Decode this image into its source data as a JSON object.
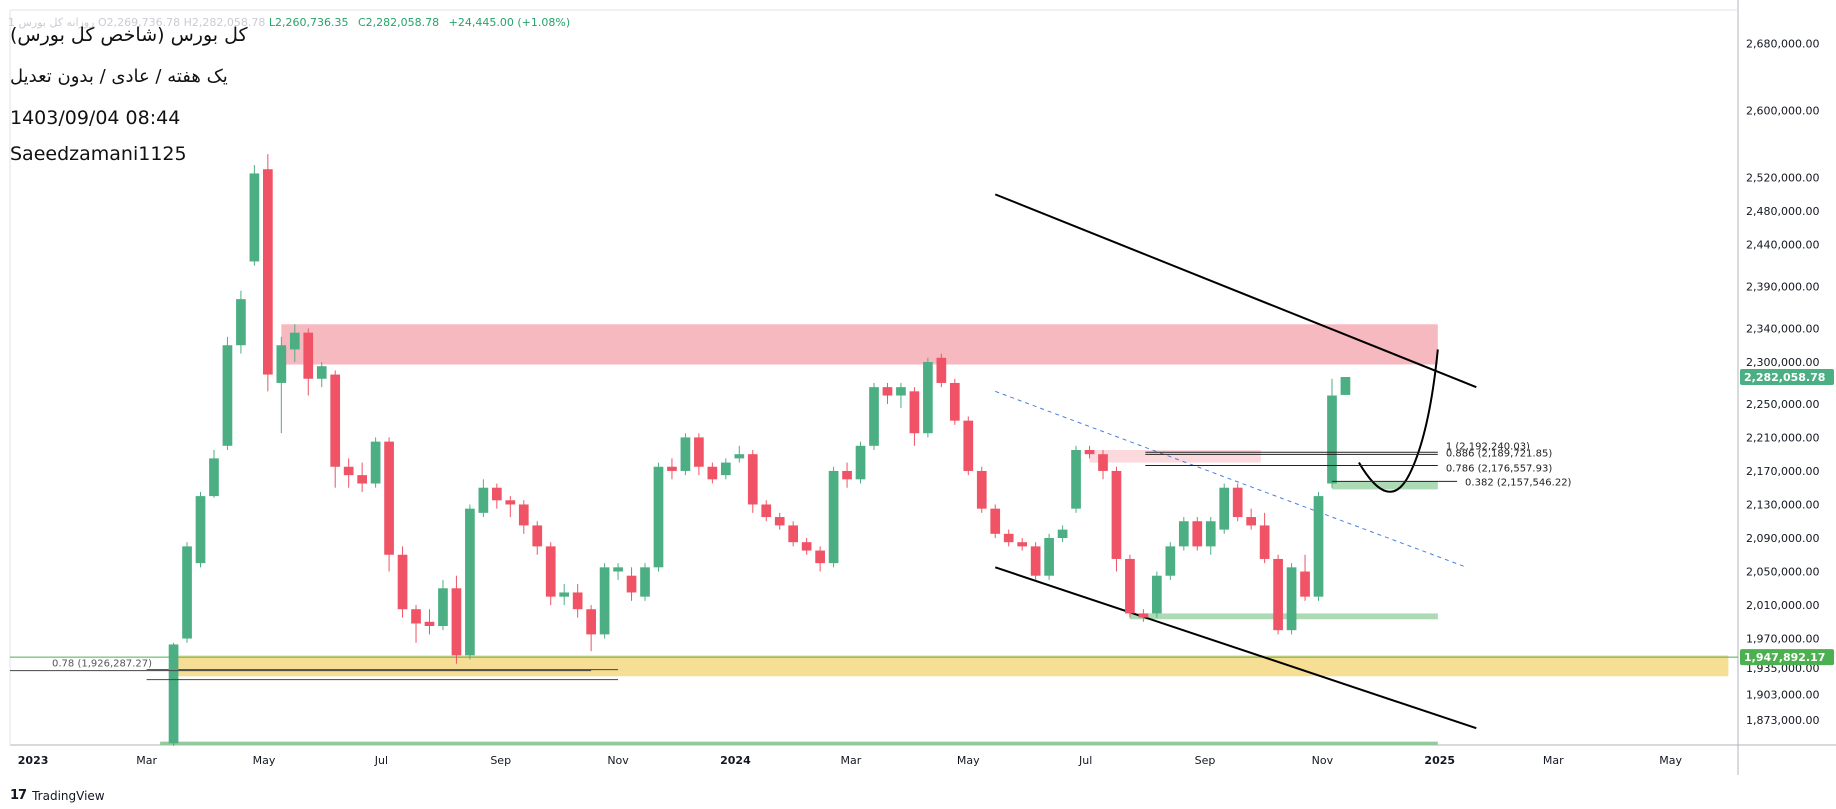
{
  "header": {
    "ohlc_faint": "1 روزانه کل بورس  O2,269,736.78  H2,282,058.78",
    "low": "L2,260,736.35",
    "close": "C2,282,058.78",
    "change": "+24,445.00 (+1.08%)"
  },
  "info": {
    "symbol_title": "کل بورس (شاخص کل بورس)",
    "timeframe": "یک هفته / عادی / بدون تعدیل",
    "datetime": "1403/09/04 08:44",
    "author": "Saeedzamani1125"
  },
  "branding": {
    "logo": "17",
    "name": "TradingView"
  },
  "colors": {
    "up": "#4caf84",
    "down": "#ef5365",
    "resistance_zone": "#f7b5bd",
    "support_zone": "#f7dc8f",
    "green_zone": "#a7d8b1",
    "price_badge": "#4caf84"
  },
  "chart_data": {
    "type": "candlestick",
    "interval": "weekly",
    "ylim": [
      1843000,
      2720000
    ],
    "xlim": [
      "2022-12-20",
      "2025-06-05"
    ],
    "y_ticks": [
      {
        "value": 1873000,
        "label": "1,873,000.00"
      },
      {
        "value": 1903000,
        "label": "1,903,000.00"
      },
      {
        "value": 1935000,
        "label": "1,935,000.00"
      },
      {
        "value": 1970000,
        "label": "1,970,000.00"
      },
      {
        "value": 2010000,
        "label": "2,010,000.00"
      },
      {
        "value": 2050000,
        "label": "2,050,000.00"
      },
      {
        "value": 2090000,
        "label": "2,090,000.00"
      },
      {
        "value": 2130000,
        "label": "2,130,000.00"
      },
      {
        "value": 2170000,
        "label": "2,170,000.00"
      },
      {
        "value": 2210000,
        "label": "2,210,000.00"
      },
      {
        "value": 2250000,
        "label": "2,250,000.00"
      },
      {
        "value": 2300000,
        "label": "2,300,000.00"
      },
      {
        "value": 2340000,
        "label": "2,340,000.00"
      },
      {
        "value": 2390000,
        "label": "2,390,000.00"
      },
      {
        "value": 2440000,
        "label": "2,440,000.00"
      },
      {
        "value": 2480000,
        "label": "2,480,000.00"
      },
      {
        "value": 2520000,
        "label": "2,520,000.00"
      },
      {
        "value": 2600000,
        "label": "2,600,000.00"
      },
      {
        "value": 2680000,
        "label": "2,680,000.00"
      }
    ],
    "x_ticks": [
      {
        "date": "2023-01-01",
        "label": "2023"
      },
      {
        "date": "2023-03-01",
        "label": "Mar"
      },
      {
        "date": "2023-05-01",
        "label": "May"
      },
      {
        "date": "2023-07-01",
        "label": "Jul"
      },
      {
        "date": "2023-09-01",
        "label": "Sep"
      },
      {
        "date": "2023-11-01",
        "label": "Nov"
      },
      {
        "date": "2024-01-01",
        "label": "2024"
      },
      {
        "date": "2024-03-01",
        "label": "Mar"
      },
      {
        "date": "2024-05-01",
        "label": "May"
      },
      {
        "date": "2024-07-01",
        "label": "Jul"
      },
      {
        "date": "2024-09-01",
        "label": "Sep"
      },
      {
        "date": "2024-11-01",
        "label": "Nov"
      },
      {
        "date": "2025-01-01",
        "label": "2025"
      },
      {
        "date": "2025-03-01",
        "label": "Mar"
      },
      {
        "date": "2025-05-01",
        "label": "May"
      }
    ],
    "last_price": {
      "value": 2282058.78,
      "label": "2,282,058.78"
    },
    "horizontal_line": {
      "value": 1947892.17,
      "label": "1,947,892.17"
    },
    "candles": [
      {
        "t": "2023-03-15",
        "o": 1845000,
        "h": 1965000,
        "l": 1842000,
        "c": 1963000
      },
      {
        "t": "2023-03-22",
        "o": 1970000,
        "h": 2085000,
        "l": 1965000,
        "c": 2080000
      },
      {
        "t": "2023-03-29",
        "o": 2060000,
        "h": 2145000,
        "l": 2055000,
        "c": 2140000
      },
      {
        "t": "2023-04-05",
        "o": 2140000,
        "h": 2195000,
        "l": 2138000,
        "c": 2185000
      },
      {
        "t": "2023-04-12",
        "o": 2200000,
        "h": 2330000,
        "l": 2195000,
        "c": 2320000
      },
      {
        "t": "2023-04-19",
        "o": 2320000,
        "h": 2385000,
        "l": 2310000,
        "c": 2375000
      },
      {
        "t": "2023-04-26",
        "o": 2420000,
        "h": 2535000,
        "l": 2415000,
        "c": 2525000
      },
      {
        "t": "2023-05-03",
        "o": 2530000,
        "h": 2548000,
        "l": 2265000,
        "c": 2285000
      },
      {
        "t": "2023-05-10",
        "o": 2275000,
        "h": 2330000,
        "l": 2215000,
        "c": 2320000
      },
      {
        "t": "2023-05-17",
        "o": 2315000,
        "h": 2345000,
        "l": 2300000,
        "c": 2335000
      },
      {
        "t": "2023-05-24",
        "o": 2335000,
        "h": 2340000,
        "l": 2260000,
        "c": 2280000
      },
      {
        "t": "2023-05-31",
        "o": 2280000,
        "h": 2300000,
        "l": 2270000,
        "c": 2295000
      },
      {
        "t": "2023-06-07",
        "o": 2285000,
        "h": 2290000,
        "l": 2150000,
        "c": 2175000
      },
      {
        "t": "2023-06-14",
        "o": 2175000,
        "h": 2185000,
        "l": 2150000,
        "c": 2165000
      },
      {
        "t": "2023-06-21",
        "o": 2165000,
        "h": 2180000,
        "l": 2145000,
        "c": 2155000
      },
      {
        "t": "2023-06-28",
        "o": 2155000,
        "h": 2210000,
        "l": 2150000,
        "c": 2205000
      },
      {
        "t": "2023-07-05",
        "o": 2205000,
        "h": 2210000,
        "l": 2050000,
        "c": 2070000
      },
      {
        "t": "2023-07-12",
        "o": 2070000,
        "h": 2080000,
        "l": 1995000,
        "c": 2005000
      },
      {
        "t": "2023-07-19",
        "o": 2005000,
        "h": 2010000,
        "l": 1965000,
        "c": 1988000
      },
      {
        "t": "2023-07-26",
        "o": 1990000,
        "h": 2005000,
        "l": 1975000,
        "c": 1985000
      },
      {
        "t": "2023-08-02",
        "o": 1985000,
        "h": 2040000,
        "l": 1980000,
        "c": 2030000
      },
      {
        "t": "2023-08-09",
        "o": 2030000,
        "h": 2045000,
        "l": 1940000,
        "c": 1950000
      },
      {
        "t": "2023-08-16",
        "o": 1950000,
        "h": 2130000,
        "l": 1945000,
        "c": 2125000
      },
      {
        "t": "2023-08-23",
        "o": 2120000,
        "h": 2160000,
        "l": 2115000,
        "c": 2150000
      },
      {
        "t": "2023-08-30",
        "o": 2150000,
        "h": 2155000,
        "l": 2125000,
        "c": 2135000
      },
      {
        "t": "2023-09-06",
        "o": 2135000,
        "h": 2140000,
        "l": 2115000,
        "c": 2130000
      },
      {
        "t": "2023-09-13",
        "o": 2130000,
        "h": 2135000,
        "l": 2095000,
        "c": 2105000
      },
      {
        "t": "2023-09-20",
        "o": 2105000,
        "h": 2110000,
        "l": 2070000,
        "c": 2080000
      },
      {
        "t": "2023-09-27",
        "o": 2080000,
        "h": 2085000,
        "l": 2010000,
        "c": 2020000
      },
      {
        "t": "2023-10-04",
        "o": 2020000,
        "h": 2035000,
        "l": 2010000,
        "c": 2025000
      },
      {
        "t": "2023-10-11",
        "o": 2025000,
        "h": 2035000,
        "l": 1995000,
        "c": 2005000
      },
      {
        "t": "2023-10-18",
        "o": 2005000,
        "h": 2010000,
        "l": 1955000,
        "c": 1975000
      },
      {
        "t": "2023-10-25",
        "o": 1975000,
        "h": 2060000,
        "l": 1970000,
        "c": 2055000
      },
      {
        "t": "2023-11-01",
        "o": 2050000,
        "h": 2060000,
        "l": 2040000,
        "c": 2055000
      },
      {
        "t": "2023-11-08",
        "o": 2045000,
        "h": 2055000,
        "l": 2015000,
        "c": 2025000
      },
      {
        "t": "2023-11-15",
        "o": 2020000,
        "h": 2060000,
        "l": 2015000,
        "c": 2055000
      },
      {
        "t": "2023-11-22",
        "o": 2055000,
        "h": 2180000,
        "l": 2050000,
        "c": 2175000
      },
      {
        "t": "2023-11-29",
        "o": 2175000,
        "h": 2185000,
        "l": 2160000,
        "c": 2170000
      },
      {
        "t": "2023-12-06",
        "o": 2170000,
        "h": 2215000,
        "l": 2165000,
        "c": 2210000
      },
      {
        "t": "2023-12-13",
        "o": 2210000,
        "h": 2215000,
        "l": 2165000,
        "c": 2175000
      },
      {
        "t": "2023-12-20",
        "o": 2175000,
        "h": 2180000,
        "l": 2155000,
        "c": 2160000
      },
      {
        "t": "2023-12-27",
        "o": 2165000,
        "h": 2185000,
        "l": 2160000,
        "c": 2180000
      },
      {
        "t": "2024-01-03",
        "o": 2185000,
        "h": 2200000,
        "l": 2180000,
        "c": 2190000
      },
      {
        "t": "2024-01-10",
        "o": 2190000,
        "h": 2195000,
        "l": 2120000,
        "c": 2130000
      },
      {
        "t": "2024-01-17",
        "o": 2130000,
        "h": 2135000,
        "l": 2110000,
        "c": 2115000
      },
      {
        "t": "2024-01-24",
        "o": 2115000,
        "h": 2120000,
        "l": 2100000,
        "c": 2105000
      },
      {
        "t": "2024-01-31",
        "o": 2105000,
        "h": 2110000,
        "l": 2080000,
        "c": 2085000
      },
      {
        "t": "2024-02-07",
        "o": 2085000,
        "h": 2090000,
        "l": 2070000,
        "c": 2075000
      },
      {
        "t": "2024-02-14",
        "o": 2075000,
        "h": 2080000,
        "l": 2050000,
        "c": 2060000
      },
      {
        "t": "2024-02-21",
        "o": 2060000,
        "h": 2175000,
        "l": 2055000,
        "c": 2170000
      },
      {
        "t": "2024-02-28",
        "o": 2170000,
        "h": 2180000,
        "l": 2150000,
        "c": 2160000
      },
      {
        "t": "2024-03-06",
        "o": 2160000,
        "h": 2205000,
        "l": 2155000,
        "c": 2200000
      },
      {
        "t": "2024-03-13",
        "o": 2200000,
        "h": 2275000,
        "l": 2195000,
        "c": 2270000
      },
      {
        "t": "2024-03-20",
        "o": 2270000,
        "h": 2275000,
        "l": 2250000,
        "c": 2260000
      },
      {
        "t": "2024-03-27",
        "o": 2260000,
        "h": 2275000,
        "l": 2245000,
        "c": 2270000
      },
      {
        "t": "2024-04-03",
        "o": 2265000,
        "h": 2270000,
        "l": 2200000,
        "c": 2215000
      },
      {
        "t": "2024-04-10",
        "o": 2215000,
        "h": 2305000,
        "l": 2210000,
        "c": 2300000
      },
      {
        "t": "2024-04-17",
        "o": 2305000,
        "h": 2310000,
        "l": 2270000,
        "c": 2275000
      },
      {
        "t": "2024-04-24",
        "o": 2275000,
        "h": 2280000,
        "l": 2225000,
        "c": 2230000
      },
      {
        "t": "2024-05-01",
        "o": 2230000,
        "h": 2235000,
        "l": 2165000,
        "c": 2170000
      },
      {
        "t": "2024-05-08",
        "o": 2170000,
        "h": 2175000,
        "l": 2120000,
        "c": 2125000
      },
      {
        "t": "2024-05-15",
        "o": 2125000,
        "h": 2130000,
        "l": 2090000,
        "c": 2095000
      },
      {
        "t": "2024-05-22",
        "o": 2095000,
        "h": 2100000,
        "l": 2080000,
        "c": 2085000
      },
      {
        "t": "2024-05-29",
        "o": 2085000,
        "h": 2090000,
        "l": 2075000,
        "c": 2080000
      },
      {
        "t": "2024-06-05",
        "o": 2080000,
        "h": 2085000,
        "l": 2040000,
        "c": 2045000
      },
      {
        "t": "2024-06-12",
        "o": 2045000,
        "h": 2095000,
        "l": 2040000,
        "c": 2090000
      },
      {
        "t": "2024-06-19",
        "o": 2090000,
        "h": 2105000,
        "l": 2085000,
        "c": 2100000
      },
      {
        "t": "2024-06-26",
        "o": 2125000,
        "h": 2200000,
        "l": 2120000,
        "c": 2195000
      },
      {
        "t": "2024-07-03",
        "o": 2195000,
        "h": 2200000,
        "l": 2185000,
        "c": 2190000
      },
      {
        "t": "2024-07-10",
        "o": 2190000,
        "h": 2195000,
        "l": 2160000,
        "c": 2170000
      },
      {
        "t": "2024-07-17",
        "o": 2170000,
        "h": 2175000,
        "l": 2050000,
        "c": 2065000
      },
      {
        "t": "2024-07-24",
        "o": 2065000,
        "h": 2070000,
        "l": 1995000,
        "c": 2000000
      },
      {
        "t": "2024-07-31",
        "o": 2000000,
        "h": 2005000,
        "l": 1990000,
        "c": 1995000
      },
      {
        "t": "2024-08-07",
        "o": 2000000,
        "h": 2050000,
        "l": 1995000,
        "c": 2045000
      },
      {
        "t": "2024-08-14",
        "o": 2045000,
        "h": 2085000,
        "l": 2040000,
        "c": 2080000
      },
      {
        "t": "2024-08-21",
        "o": 2080000,
        "h": 2115000,
        "l": 2075000,
        "c": 2110000
      },
      {
        "t": "2024-08-28",
        "o": 2110000,
        "h": 2115000,
        "l": 2075000,
        "c": 2080000
      },
      {
        "t": "2024-09-04",
        "o": 2080000,
        "h": 2115000,
        "l": 2070000,
        "c": 2110000
      },
      {
        "t": "2024-09-11",
        "o": 2100000,
        "h": 2155000,
        "l": 2095000,
        "c": 2150000
      },
      {
        "t": "2024-09-18",
        "o": 2150000,
        "h": 2155000,
        "l": 2110000,
        "c": 2115000
      },
      {
        "t": "2024-09-25",
        "o": 2115000,
        "h": 2125000,
        "l": 2100000,
        "c": 2105000
      },
      {
        "t": "2024-10-02",
        "o": 2105000,
        "h": 2120000,
        "l": 2060000,
        "c": 2065000
      },
      {
        "t": "2024-10-09",
        "o": 2065000,
        "h": 2070000,
        "l": 1975000,
        "c": 1980000
      },
      {
        "t": "2024-10-16",
        "o": 1980000,
        "h": 2060000,
        "l": 1975000,
        "c": 2055000
      },
      {
        "t": "2024-10-23",
        "o": 2050000,
        "h": 2070000,
        "l": 2015000,
        "c": 2020000
      },
      {
        "t": "2024-10-30",
        "o": 2020000,
        "h": 2145000,
        "l": 2015000,
        "c": 2140000
      },
      {
        "t": "2024-11-06",
        "o": 2155000,
        "h": 2280000,
        "l": 2150000,
        "c": 2260000
      },
      {
        "t": "2024-11-13",
        "o": 2260736.35,
        "h": 2282058.78,
        "l": 2260736.35,
        "c": 2282058.78
      }
    ]
  },
  "drawings": {
    "zones": [
      {
        "name": "resistance-zone",
        "t1": "2023-05-10",
        "t2": "2024-12-31",
        "y1": 2345000,
        "y2": 2297000,
        "color": "#f7b5bd"
      },
      {
        "name": "support-zone",
        "t1": "2023-03-15",
        "t2": "2025-05-31",
        "y1": 1950000,
        "y2": 1925000,
        "color": "#f7dc8f"
      },
      {
        "name": "green-zone-fib",
        "t1": "2024-11-06",
        "t2": "2024-12-31",
        "y1": 2158000,
        "y2": 2148000,
        "color": "#a7d8b1"
      },
      {
        "name": "green-zone-low",
        "t1": "2024-07-24",
        "t2": "2024-12-31",
        "y1": 2000000,
        "y2": 1993000,
        "color": "#a7d8b1"
      },
      {
        "name": "green-zone-bottom",
        "t1": "2023-03-08",
        "t2": "2024-12-31",
        "y1": 1847000,
        "y2": 1843000,
        "color": "#8fc79a"
      },
      {
        "name": "pink-zone-small",
        "t1": "2024-07-03",
        "t2": "2024-09-30",
        "y1": 2195000,
        "y2": 2180000,
        "color": "#fbd7db"
      }
    ],
    "trendlines": [
      {
        "name": "channel-upper",
        "t1": "2024-05-15",
        "y1": 2500000,
        "t2": "2025-01-20",
        "y2": 2270000,
        "color": "#000000",
        "width": 2,
        "dash": ""
      },
      {
        "name": "channel-lower",
        "t1": "2024-05-15",
        "y1": 2055000,
        "t2": "2025-01-20",
        "y2": 1863000,
        "color": "#000000",
        "width": 2,
        "dash": ""
      },
      {
        "name": "blue-dashed-line",
        "t1": "2024-05-15",
        "y1": 2265000,
        "t2": "2025-01-15",
        "y2": 2055000,
        "color": "#4a7fe0",
        "width": 1,
        "dash": "4,4"
      },
      {
        "name": "fib-base-line",
        "t1": "2023-03-01",
        "y1": 1933000,
        "t2": "2023-11-01",
        "y2": 1933000,
        "color": "#444444",
        "width": 1,
        "dash": ""
      }
    ],
    "fib_levels": [
      {
        "value": 2192240.03,
        "ratio": "1",
        "label": "1 (2,192,240.03)"
      },
      {
        "value": 2189721.85,
        "ratio": "0.886",
        "label": "0.886 (2,189,721.85)"
      },
      {
        "value": 2176557.93,
        "ratio": "0.786",
        "label": "0.786 (2,176,557.93)"
      },
      {
        "value": 2157546.22,
        "ratio": "0.382",
        "label": "0.382 (2,157,546.22)"
      }
    ],
    "fib_left_label": "0.78 (1,926,287.27)",
    "projection_curve": {
      "start": [
        "2024-11-20",
        2180000
      ],
      "bottom": [
        "2024-12-10",
        2154000
      ],
      "end": [
        "2024-12-31",
        2315000
      ]
    }
  }
}
